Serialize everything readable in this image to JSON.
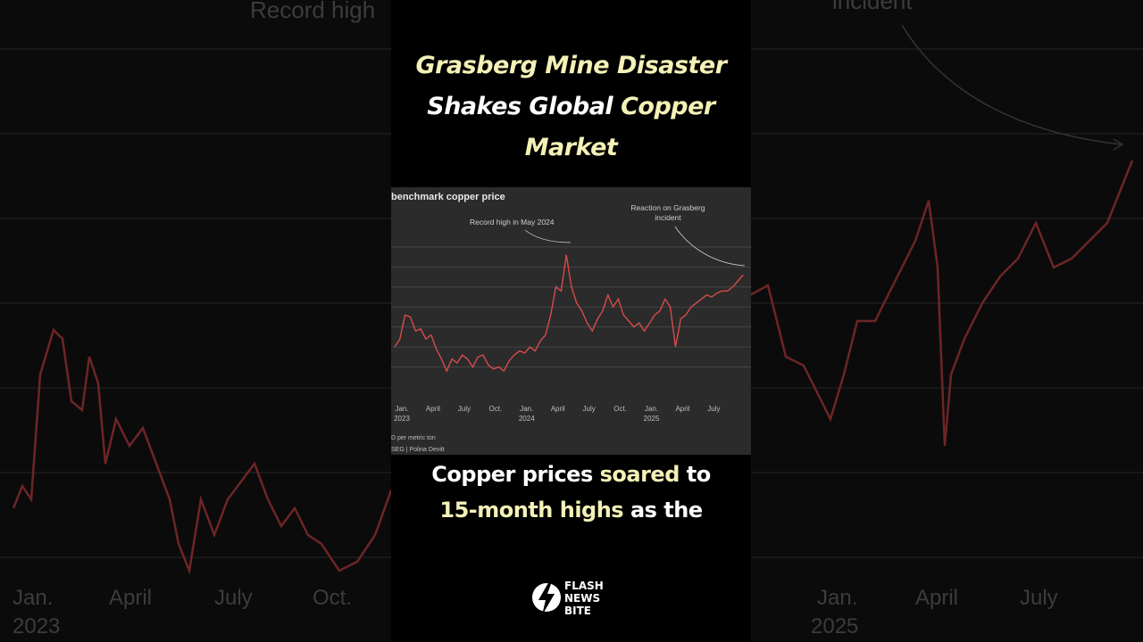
{
  "headline": {
    "line1": "Grasberg Mine Disaster",
    "line2_part1": "Shakes Global ",
    "line2_part2": "Copper",
    "line3": "Market"
  },
  "caption": {
    "line1_part1": "Copper prices ",
    "line1_part2": "soared",
    "line1_part3": " to",
    "line2_part1": "15-month highs",
    "line2_part2": " as the"
  },
  "brand": {
    "word1": "FLASH",
    "word2": "NEWS",
    "word3": "BITE"
  },
  "background_labels": {
    "record": "Record high",
    "incident": "incident",
    "ticks": [
      "Jan.",
      "April",
      "July",
      "Oct.",
      "Jan.",
      "April",
      "July"
    ],
    "years": [
      "2023",
      "2025"
    ]
  },
  "colors": {
    "line": "#d84b4b",
    "highlight": "#f3f1b6",
    "chart_bg": "#2b2b2b"
  },
  "chart_data": {
    "type": "line",
    "title": "benchmark copper price",
    "ylabel": "D per metric ton",
    "source": "SEG | Polina Devitt",
    "x_ticks": [
      {
        "label": "Jan.",
        "year": "2023"
      },
      {
        "label": "April",
        "year": ""
      },
      {
        "label": "July",
        "year": ""
      },
      {
        "label": "Oct.",
        "year": ""
      },
      {
        "label": "Jan.",
        "year": "2024"
      },
      {
        "label": "April",
        "year": ""
      },
      {
        "label": "July",
        "year": ""
      },
      {
        "label": "Oct.",
        "year": ""
      },
      {
        "label": "Jan.",
        "year": "2025"
      },
      {
        "label": "April",
        "year": ""
      },
      {
        "label": "July",
        "year": ""
      }
    ],
    "annotations": [
      {
        "text": "Record high in May 2024",
        "x": 16.5
      },
      {
        "text": "Reaction on Grasberg",
        "text2": "incident",
        "x": 33.5
      }
    ],
    "series": [
      {
        "values": [
          [
            0,
            8500
          ],
          [
            0.5,
            8700
          ],
          [
            1,
            9300
          ],
          [
            1.5,
            9250
          ],
          [
            2,
            8900
          ],
          [
            2.5,
            8950
          ],
          [
            3,
            8700
          ],
          [
            3.5,
            8800
          ],
          [
            4,
            8450
          ],
          [
            4.5,
            8200
          ],
          [
            5,
            7900
          ],
          [
            5.5,
            8200
          ],
          [
            6,
            8100
          ],
          [
            6.5,
            8300
          ],
          [
            7,
            8200
          ],
          [
            7.5,
            8000
          ],
          [
            8,
            8250
          ],
          [
            8.5,
            8300
          ],
          [
            9,
            8050
          ],
          [
            9.5,
            7950
          ],
          [
            10,
            8000
          ],
          [
            10.5,
            7900
          ],
          [
            11,
            8150
          ],
          [
            11.5,
            8300
          ],
          [
            12,
            8400
          ],
          [
            12.5,
            8350
          ],
          [
            13,
            8500
          ],
          [
            13.5,
            8400
          ],
          [
            14,
            8650
          ],
          [
            14.5,
            8800
          ],
          [
            15,
            9300
          ],
          [
            15.5,
            10000
          ],
          [
            16,
            9900
          ],
          [
            16.5,
            10800
          ],
          [
            17,
            10000
          ],
          [
            17.5,
            9600
          ],
          [
            18,
            9400
          ],
          [
            18.5,
            9100
          ],
          [
            19,
            8900
          ],
          [
            19.5,
            9200
          ],
          [
            20,
            9400
          ],
          [
            20.5,
            9800
          ],
          [
            21,
            9500
          ],
          [
            21.5,
            9700
          ],
          [
            22,
            9300
          ],
          [
            22.5,
            9150
          ],
          [
            23,
            9000
          ],
          [
            23.5,
            9100
          ],
          [
            24,
            8900
          ],
          [
            24.5,
            9100
          ],
          [
            25,
            9300
          ],
          [
            25.5,
            9400
          ],
          [
            26,
            9700
          ],
          [
            26.5,
            9500
          ],
          [
            27,
            8500
          ],
          [
            27.5,
            9200
          ],
          [
            28,
            9300
          ],
          [
            28.5,
            9500
          ],
          [
            29,
            9600
          ],
          [
            29.5,
            9700
          ],
          [
            30,
            9800
          ],
          [
            30.5,
            9750
          ],
          [
            31,
            9850
          ],
          [
            31.5,
            9900
          ],
          [
            32,
            9900
          ],
          [
            32.5,
            10000
          ],
          [
            33,
            10150
          ],
          [
            33.5,
            10300
          ]
        ]
      }
    ],
    "xlim": [
      0,
      34
    ],
    "ylim": [
      7300,
      11600
    ]
  }
}
